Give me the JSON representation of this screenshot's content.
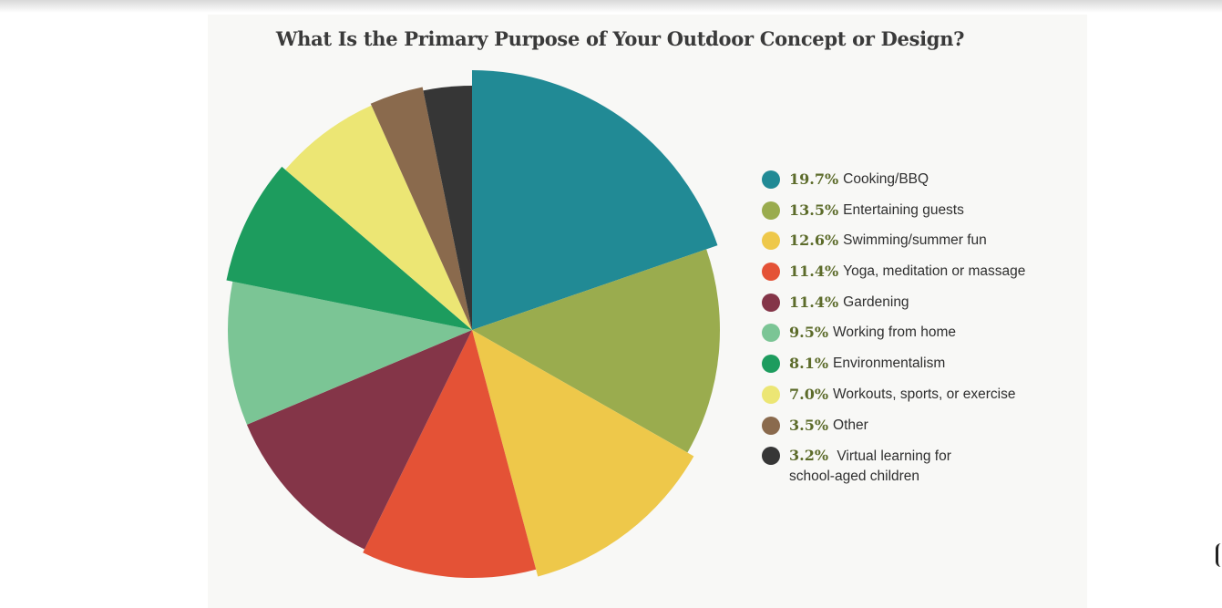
{
  "chart_data": {
    "type": "pie",
    "title": "What Is the Primary Purpose of Your Outdoor Concept or Design?",
    "legend_position": "right",
    "slices": [
      {
        "pct_label": "19.7%",
        "value": 19.7,
        "label": "Cooking/BBQ",
        "color": "#218a95"
      },
      {
        "pct_label": "13.5%",
        "value": 13.5,
        "label": "Entertaining guests",
        "color": "#9aac4e"
      },
      {
        "pct_label": "12.6%",
        "value": 12.6,
        "label": "Swimming/summer fun",
        "color": "#eec84a"
      },
      {
        "pct_label": "11.4%",
        "value": 11.4,
        "label": "Yoga, meditation or massage",
        "color": "#e45236"
      },
      {
        "pct_label": "11.4%",
        "value": 11.4,
        "label": "Gardening",
        "color": "#843548"
      },
      {
        "pct_label": "9.5%",
        "value": 9.5,
        "label": "Working from home",
        "color": "#7bc595"
      },
      {
        "pct_label": "8.1%",
        "value": 8.1,
        "label": "Environmentalism",
        "color": "#1d9c5e"
      },
      {
        "pct_label": "7.0%",
        "value": 7.0,
        "label": "Workouts, sports, or exercise",
        "color": "#ece674"
      },
      {
        "pct_label": "3.5%",
        "value": 3.5,
        "label": "Other",
        "color": "#8a6a4d"
      },
      {
        "pct_label": "3.2%",
        "value": 3.2,
        "label": "Virtual learning for school-aged children",
        "color": "#363636"
      }
    ]
  }
}
